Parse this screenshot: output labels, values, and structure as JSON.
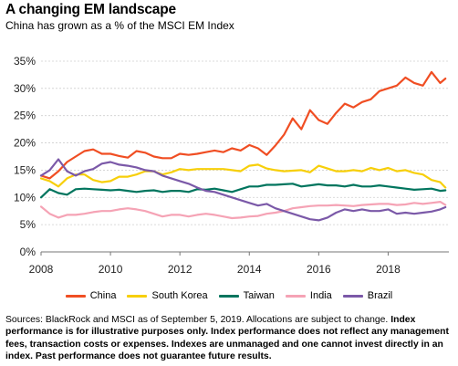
{
  "header": {
    "title": "A changing EM landscape",
    "subtitle": "China has grown as a % of the MSCI EM Index"
  },
  "footnote": {
    "plain": "Sources: BlackRock and MSCI as of September 5, 2019. Allocations are subject to change.",
    "bold": "Index performance is for illustrative purposes only. Index performance does not reflect any management fees, transaction costs or expenses. Indexes are unmanaged and one cannot invest directly in an index. Past performance does not guarantee future results."
  },
  "chart_data": {
    "type": "line",
    "title": "A changing EM landscape",
    "subtitle": "China has grown as a % of the MSCI EM Index",
    "xlabel": "",
    "ylabel": "",
    "xlim": [
      2008,
      2019.75
    ],
    "ylim": [
      0,
      36
    ],
    "x_ticks": [
      2008,
      2010,
      2012,
      2014,
      2016,
      2018
    ],
    "x_tick_labels": [
      "2008",
      "2010",
      "2012",
      "2014",
      "2016",
      "2018"
    ],
    "y_ticks": [
      0,
      5,
      10,
      15,
      20,
      25,
      30,
      35
    ],
    "y_tick_labels": [
      "0%",
      "5%",
      "10%",
      "15%",
      "20%",
      "25%",
      "30%",
      "35%"
    ],
    "grid": "horizontal",
    "legend_position": "bottom",
    "x": [
      2008.0,
      2008.25,
      2008.5,
      2008.75,
      2009.0,
      2009.25,
      2009.5,
      2009.75,
      2010.0,
      2010.25,
      2010.5,
      2010.75,
      2011.0,
      2011.25,
      2011.5,
      2011.75,
      2012.0,
      2012.25,
      2012.5,
      2012.75,
      2013.0,
      2013.25,
      2013.5,
      2013.75,
      2014.0,
      2014.25,
      2014.5,
      2014.75,
      2015.0,
      2015.25,
      2015.5,
      2015.75,
      2016.0,
      2016.25,
      2016.5,
      2016.75,
      2017.0,
      2017.25,
      2017.5,
      2017.75,
      2018.0,
      2018.25,
      2018.5,
      2018.75,
      2019.0,
      2019.25,
      2019.5,
      2019.65
    ],
    "series": [
      {
        "name": "China",
        "color": "#f04e23",
        "values": [
          14.0,
          13.5,
          14.8,
          16.5,
          17.5,
          18.5,
          18.8,
          18.0,
          18.0,
          17.6,
          17.3,
          18.5,
          18.2,
          17.5,
          17.2,
          17.2,
          18.0,
          17.8,
          18.0,
          18.3,
          18.6,
          18.3,
          19.0,
          18.6,
          19.6,
          19.0,
          17.8,
          19.5,
          21.5,
          24.5,
          22.5,
          26.0,
          24.2,
          23.5,
          25.5,
          27.2,
          26.5,
          27.5,
          28.0,
          29.5,
          30.0,
          30.5,
          32.0,
          31.0,
          30.5,
          33.0,
          31.0,
          31.8
        ]
      },
      {
        "name": "South Korea",
        "color": "#f7cf0a",
        "values": [
          13.5,
          13.0,
          12.0,
          13.5,
          14.2,
          14.2,
          13.2,
          12.8,
          13.0,
          13.8,
          13.8,
          14.2,
          14.8,
          14.8,
          14.2,
          14.6,
          15.2,
          15.0,
          15.2,
          15.2,
          15.2,
          15.2,
          15.0,
          14.8,
          15.8,
          16.0,
          15.3,
          15.0,
          14.8,
          14.9,
          15.0,
          14.6,
          15.8,
          15.3,
          14.8,
          14.8,
          15.0,
          14.8,
          15.4,
          15.0,
          15.4,
          14.8,
          15.0,
          14.5,
          14.2,
          13.2,
          12.8,
          11.8
        ]
      },
      {
        "name": "Taiwan",
        "color": "#00755e",
        "values": [
          10.0,
          11.5,
          10.8,
          10.5,
          11.5,
          11.6,
          11.5,
          11.4,
          11.3,
          11.4,
          11.2,
          11.0,
          11.2,
          11.3,
          11.0,
          11.2,
          11.2,
          11.0,
          11.5,
          11.4,
          11.6,
          11.3,
          11.0,
          11.5,
          12.0,
          12.0,
          12.3,
          12.3,
          12.4,
          12.5,
          12.0,
          12.2,
          12.4,
          12.2,
          12.2,
          12.0,
          12.3,
          12.0,
          12.0,
          12.2,
          12.0,
          11.8,
          11.6,
          11.4,
          11.5,
          11.6,
          11.2,
          11.3
        ]
      },
      {
        "name": "India",
        "color": "#f5a3b5",
        "values": [
          8.3,
          7.0,
          6.3,
          6.8,
          6.8,
          7.0,
          7.3,
          7.5,
          7.5,
          7.8,
          8.0,
          7.8,
          7.5,
          7.0,
          6.5,
          6.8,
          6.8,
          6.5,
          6.8,
          7.0,
          6.8,
          6.5,
          6.2,
          6.3,
          6.5,
          6.6,
          7.0,
          7.2,
          7.5,
          8.0,
          8.2,
          8.4,
          8.5,
          8.5,
          8.6,
          8.5,
          8.4,
          8.6,
          8.7,
          8.8,
          8.8,
          8.6,
          8.7,
          9.0,
          8.8,
          9.0,
          9.2,
          8.6
        ]
      },
      {
        "name": "Brazil",
        "color": "#7b59a8",
        "values": [
          14.0,
          15.0,
          17.0,
          14.8,
          14.0,
          14.8,
          15.2,
          16.2,
          16.5,
          16.0,
          15.8,
          15.5,
          15.0,
          14.8,
          14.0,
          13.5,
          13.0,
          12.5,
          11.8,
          11.2,
          11.0,
          10.5,
          10.0,
          9.5,
          9.0,
          8.5,
          8.8,
          8.0,
          7.5,
          7.0,
          6.5,
          6.0,
          5.8,
          6.3,
          7.2,
          7.8,
          7.5,
          7.8,
          7.5,
          7.5,
          7.8,
          7.0,
          7.2,
          7.0,
          7.2,
          7.4,
          7.8,
          8.2
        ]
      }
    ]
  }
}
